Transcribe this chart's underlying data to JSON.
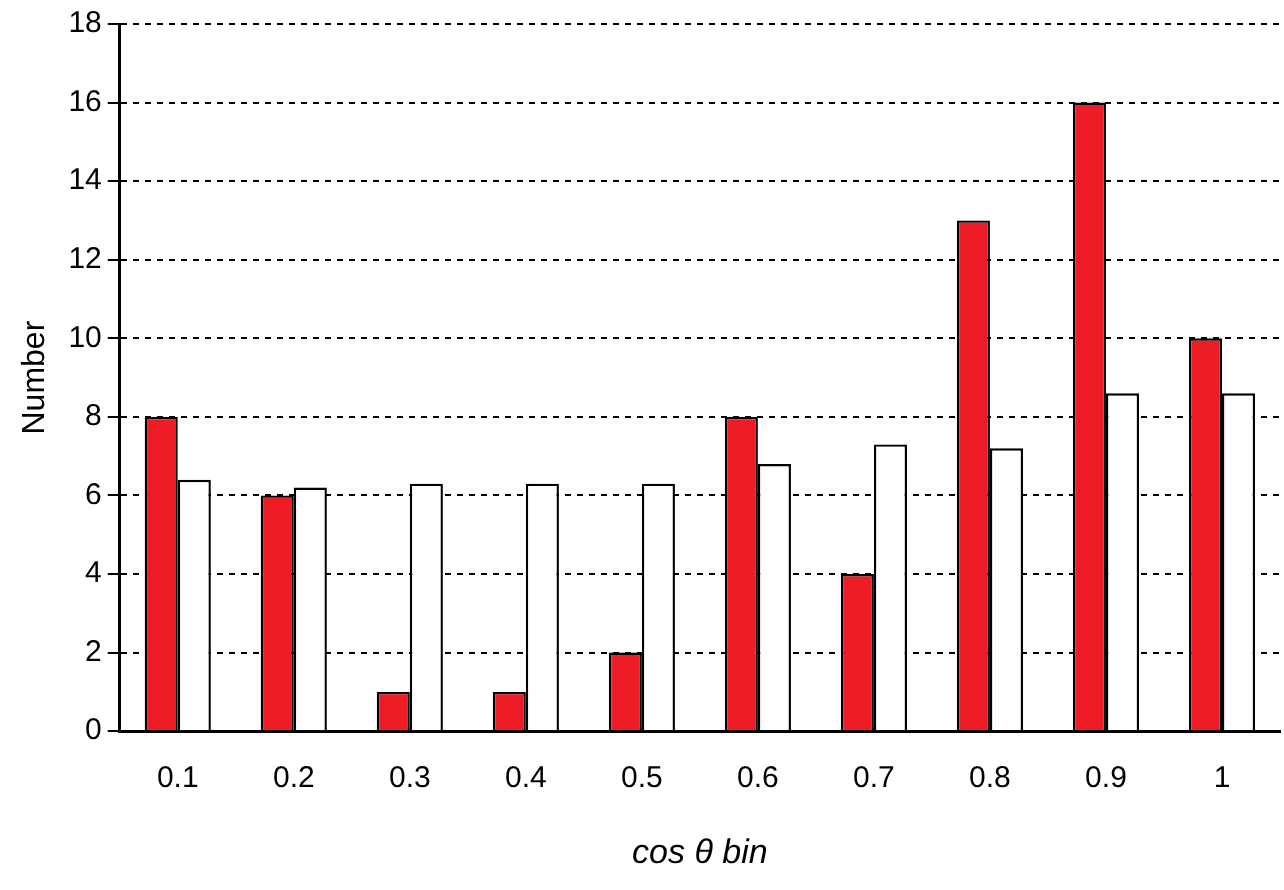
{
  "chart_data": {
    "type": "bar",
    "xlabel": "cos θ bin",
    "ylabel": "Number",
    "categories": [
      "0.1",
      "0.2",
      "0.3",
      "0.4",
      "0.5",
      "0.6",
      "0.7",
      "0.8",
      "0.9",
      "1"
    ],
    "series": [
      {
        "color": "#ee1c25",
        "values": [
          8,
          6,
          1,
          1,
          2,
          8,
          4,
          13,
          16,
          10
        ]
      },
      {
        "color": "#ffffff",
        "values": [
          6.4,
          6.2,
          6.3,
          6.3,
          6.3,
          6.8,
          7.3,
          7.2,
          8.6,
          8.6
        ]
      }
    ],
    "ylim": [
      0,
      18
    ],
    "yticks": [
      0,
      2,
      4,
      6,
      8,
      10,
      12,
      14,
      16,
      18
    ],
    "grid": "y",
    "legend": false
  }
}
